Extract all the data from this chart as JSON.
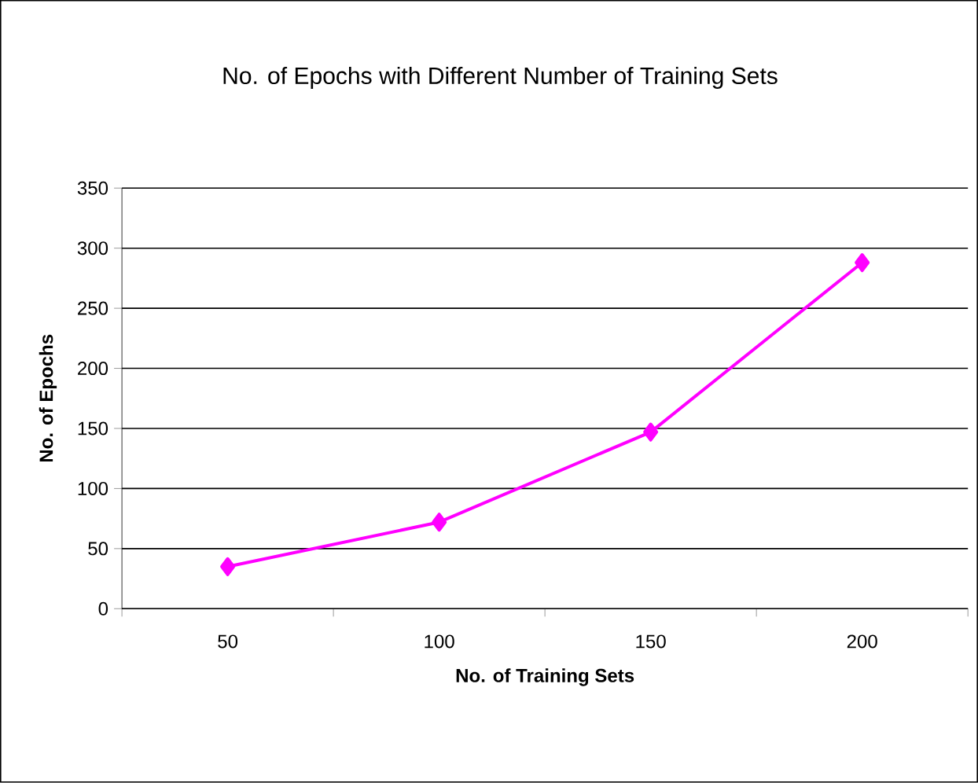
{
  "chart_data": {
    "type": "line",
    "title": "No. of Epochs with Different Number of Training Sets",
    "xlabel": "No. of Training Sets",
    "ylabel": "No. of Epochs",
    "categories": [
      "50",
      "100",
      "150",
      "200"
    ],
    "series": [
      {
        "color": "#ff00ff",
        "values": [
          35,
          72,
          147,
          288
        ]
      }
    ],
    "ylim": [
      0,
      350
    ],
    "yticks": [
      0,
      50,
      100,
      150,
      200,
      250,
      300,
      350
    ],
    "grid": "y",
    "marker": "diamond",
    "line_style": "solid"
  }
}
